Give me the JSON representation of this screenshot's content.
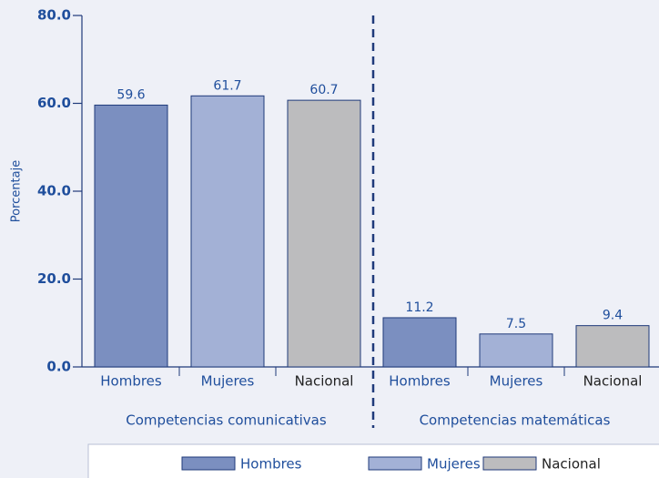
{
  "chart_data": {
    "type": "bar",
    "y_label": "Porcentaje",
    "groups": [
      "Competencias comunicativas",
      "Competencias matemáticas"
    ],
    "series": [
      {
        "name": "Hombres",
        "color": "#7b8fc0",
        "values": [
          59.6,
          11.2
        ]
      },
      {
        "name": "Mujeres",
        "color": "#a3b1d6",
        "values": [
          61.7,
          7.5
        ]
      },
      {
        "name": "Nacional",
        "color": "#bcbcbe",
        "values": [
          60.7,
          9.4
        ]
      }
    ],
    "ylim": [
      0,
      80
    ],
    "yticks": [
      {
        "value": 0,
        "label": "0.0"
      },
      {
        "value": 20,
        "label": "20.0"
      },
      {
        "value": 40,
        "label": "40.0"
      },
      {
        "value": 60,
        "label": "60.0"
      },
      {
        "value": 80,
        "label": "80.0"
      }
    ],
    "legend": "bottom"
  }
}
